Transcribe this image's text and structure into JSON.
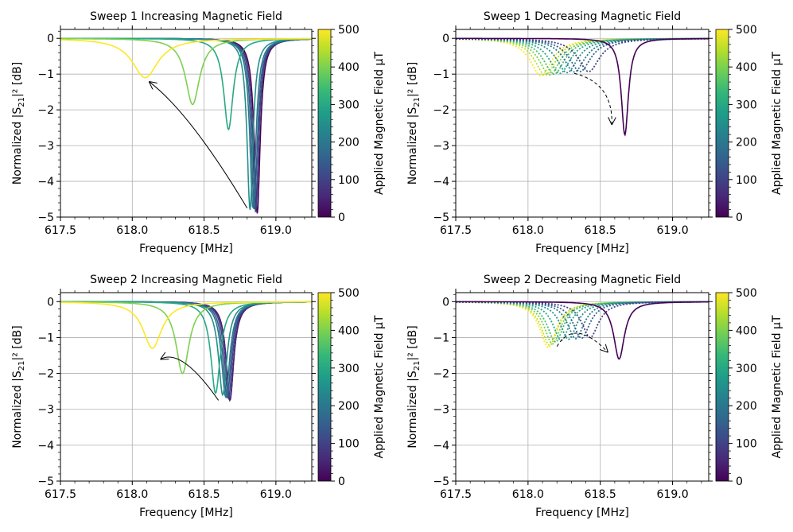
{
  "colorbar": {
    "label": "Applied Magnetic Field μT",
    "ticks": [
      "0",
      "100",
      "200",
      "300",
      "400",
      "500"
    ],
    "colors": [
      "#440154",
      "#482878",
      "#3e4989",
      "#31688e",
      "#26828e",
      "#1f9e89",
      "#35b779",
      "#6ece58",
      "#b5de2b",
      "#fde725"
    ]
  },
  "chart_data": [
    {
      "type": "line",
      "title": "Sweep 1 Increasing Magnetic Field",
      "xlabel": "Frequency [MHz]",
      "ylabel": "Normalized |S21|² [dB]",
      "xlim": [
        617.5,
        619.25
      ],
      "ylim": [
        -5,
        0.25
      ],
      "xticks": [
        "617.5",
        "618.0",
        "618.5",
        "619.0"
      ],
      "yticks": [
        "0",
        "−1",
        "−2",
        "−3",
        "−4",
        "−5"
      ],
      "dashed": false,
      "series": [
        {
          "field_uT": 0,
          "f0": 618.87,
          "depth": -4.9,
          "width": 0.025
        },
        {
          "field_uT": 50,
          "f0": 618.86,
          "depth": -4.85,
          "width": 0.025
        },
        {
          "field_uT": 100,
          "f0": 618.86,
          "depth": -4.8,
          "width": 0.026
        },
        {
          "field_uT": 150,
          "f0": 618.85,
          "depth": -4.78,
          "width": 0.026
        },
        {
          "field_uT": 200,
          "f0": 618.84,
          "depth": -4.75,
          "width": 0.026
        },
        {
          "field_uT": 250,
          "f0": 618.82,
          "depth": -4.8,
          "width": 0.025
        },
        {
          "field_uT": 300,
          "f0": 618.67,
          "depth": -2.55,
          "width": 0.04
        },
        {
          "field_uT": 400,
          "f0": 618.42,
          "depth": -1.85,
          "width": 0.06
        },
        {
          "field_uT": 500,
          "f0": 618.09,
          "depth": -1.1,
          "width": 0.11
        }
      ],
      "arrow": {
        "from": [
          618.8,
          -4.75
        ],
        "to": [
          618.12,
          -1.22
        ]
      }
    },
    {
      "type": "line",
      "title": "Sweep 1 Decreasing Magnetic Field",
      "xlabel": "Frequency [MHz]",
      "ylabel": "Normalized |S21|² [dB]",
      "xlim": [
        617.5,
        619.25
      ],
      "ylim": [
        -5,
        0.25
      ],
      "xticks": [
        "617.5",
        "618.0",
        "618.5",
        "619.0"
      ],
      "yticks": [
        "0",
        "−1",
        "−2",
        "−3",
        "−4",
        "−5"
      ],
      "dashed": true,
      "series": [
        {
          "field_uT": 500,
          "f0": 618.09,
          "depth": -1.05,
          "width": 0.09
        },
        {
          "field_uT": 450,
          "f0": 618.12,
          "depth": -1.03,
          "width": 0.09
        },
        {
          "field_uT": 400,
          "f0": 618.15,
          "depth": -1.02,
          "width": 0.09
        },
        {
          "field_uT": 350,
          "f0": 618.18,
          "depth": -1.0,
          "width": 0.09
        },
        {
          "field_uT": 300,
          "f0": 618.22,
          "depth": -0.98,
          "width": 0.09
        },
        {
          "field_uT": 250,
          "f0": 618.27,
          "depth": -0.96,
          "width": 0.09
        },
        {
          "field_uT": 200,
          "f0": 618.32,
          "depth": -0.94,
          "width": 0.09
        },
        {
          "field_uT": 150,
          "f0": 618.36,
          "depth": -0.93,
          "width": 0.09
        },
        {
          "field_uT": 100,
          "f0": 618.42,
          "depth": -0.93,
          "width": 0.09
        },
        {
          "field_uT": 0,
          "f0": 618.67,
          "depth": -2.7,
          "width": 0.03,
          "solid": true
        }
      ],
      "arrow": {
        "from": [
          618.32,
          -0.98
        ],
        "to": [
          618.58,
          -2.4
        ]
      }
    },
    {
      "type": "line",
      "title": "Sweep 2 Increasing Magnetic Field",
      "xlabel": "Frequency [MHz]",
      "ylabel": "Normalized |S21|² [dB]",
      "xlim": [
        617.5,
        619.25
      ],
      "ylim": [
        -5,
        0.25
      ],
      "xticks": [
        "617.5",
        "618.0",
        "618.5",
        "619.0"
      ],
      "yticks": [
        "0",
        "−1",
        "−2",
        "−3",
        "−4",
        "−5"
      ],
      "dashed": false,
      "series": [
        {
          "field_uT": 0,
          "f0": 618.68,
          "depth": -2.75,
          "width": 0.032
        },
        {
          "field_uT": 50,
          "f0": 618.68,
          "depth": -2.72,
          "width": 0.033
        },
        {
          "field_uT": 100,
          "f0": 618.67,
          "depth": -2.7,
          "width": 0.033
        },
        {
          "field_uT": 150,
          "f0": 618.66,
          "depth": -2.68,
          "width": 0.034
        },
        {
          "field_uT": 200,
          "f0": 618.65,
          "depth": -2.65,
          "width": 0.035
        },
        {
          "field_uT": 250,
          "f0": 618.63,
          "depth": -2.6,
          "width": 0.036
        },
        {
          "field_uT": 300,
          "f0": 618.58,
          "depth": -2.55,
          "width": 0.04
        },
        {
          "field_uT": 400,
          "f0": 618.35,
          "depth": -2.0,
          "width": 0.055
        },
        {
          "field_uT": 500,
          "f0": 618.14,
          "depth": -1.3,
          "width": 0.08
        }
      ],
      "arrow": {
        "from": [
          618.6,
          -2.75
        ],
        "to": [
          618.2,
          -1.6
        ]
      }
    },
    {
      "type": "line",
      "title": "Sweep 2 Decreasing Magnetic Field",
      "xlabel": "Frequency [MHz]",
      "ylabel": "Normalized |S21|² [dB]",
      "xlim": [
        617.5,
        619.25
      ],
      "ylim": [
        -5,
        0.25
      ],
      "xticks": [
        "617.5",
        "618.0",
        "618.5",
        "619.0"
      ],
      "yticks": [
        "0",
        "−1",
        "−2",
        "−3",
        "−4",
        "−5"
      ],
      "dashed": true,
      "series": [
        {
          "field_uT": 500,
          "f0": 618.14,
          "depth": -1.28,
          "width": 0.07
        },
        {
          "field_uT": 450,
          "f0": 618.15,
          "depth": -1.22,
          "width": 0.07
        },
        {
          "field_uT": 400,
          "f0": 618.17,
          "depth": -1.18,
          "width": 0.07
        },
        {
          "field_uT": 350,
          "f0": 618.19,
          "depth": -1.12,
          "width": 0.07
        },
        {
          "field_uT": 300,
          "f0": 618.23,
          "depth": -1.08,
          "width": 0.07
        },
        {
          "field_uT": 250,
          "f0": 618.28,
          "depth": -1.05,
          "width": 0.07
        },
        {
          "field_uT": 200,
          "f0": 618.33,
          "depth": -1.03,
          "width": 0.07
        },
        {
          "field_uT": 150,
          "f0": 618.37,
          "depth": -1.02,
          "width": 0.07
        },
        {
          "field_uT": 100,
          "f0": 618.43,
          "depth": -1.0,
          "width": 0.07
        },
        {
          "field_uT": 0,
          "f0": 618.63,
          "depth": -1.6,
          "width": 0.045,
          "solid": true
        }
      ],
      "arrow": {
        "from": [
          618.2,
          -1.25
        ],
        "to": [
          618.55,
          -1.4
        ]
      }
    }
  ]
}
